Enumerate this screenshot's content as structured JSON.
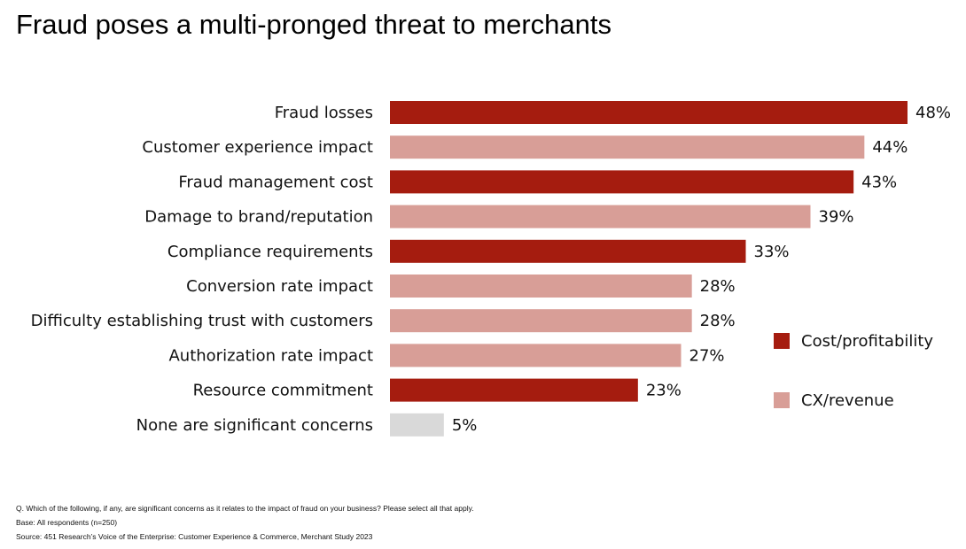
{
  "title": "Fraud poses a multi-pronged threat to merchants",
  "chart_data": {
    "type": "bar",
    "orientation": "horizontal",
    "categories": [
      "Fraud losses",
      "Customer experience impact",
      "Fraud management cost",
      "Damage to brand/reputation",
      "Compliance requirements",
      "Conversion rate impact",
      "Difficulty establishing trust with customers",
      "Authorization rate impact",
      "Resource commitment",
      "None are significant concerns"
    ],
    "values": [
      48,
      44,
      43,
      39,
      33,
      28,
      28,
      27,
      23,
      5
    ],
    "value_labels": [
      "48%",
      "44%",
      "43%",
      "39%",
      "33%",
      "28%",
      "28%",
      "27%",
      "23%",
      "5%"
    ],
    "groups": [
      "cost",
      "cx",
      "cost",
      "cx",
      "cost",
      "cx",
      "cx",
      "cx",
      "cost",
      "none"
    ],
    "unit": "%",
    "xlim": [
      0,
      48
    ],
    "grid": false,
    "legend_position": "right",
    "legend": [
      {
        "key": "cost",
        "label": "Cost/profitability",
        "color": "#A51C0F"
      },
      {
        "key": "cx",
        "label": "CX/revenue",
        "color": "#D89E97"
      }
    ],
    "colors": {
      "cost": "#A51C0F",
      "cx": "#D89E97",
      "none": "#D9D9D9"
    }
  },
  "footer": {
    "question": "Q. Which of the following, if any, are significant concerns as it relates to the impact of fraud on your business? Please select all that apply.",
    "base": "Base: All respondents (n=250)",
    "source": "Source: 451 Research’s Voice of the Enterprise: Customer Experience & Commerce, Merchant Study 2023"
  }
}
